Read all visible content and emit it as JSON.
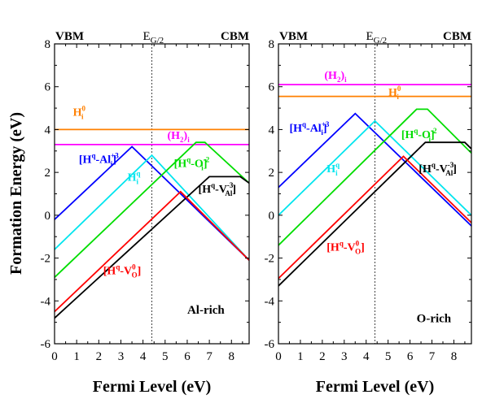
{
  "ylabel": "Formation Energy (eV)",
  "chart_data": [
    {
      "type": "line",
      "panel": "left",
      "condition_label": "Al-rich",
      "xlabel": "Fermi Level (eV)",
      "xlim": [
        0,
        8.8
      ],
      "ylim": [
        -6,
        8
      ],
      "xticks": [
        0,
        1,
        2,
        3,
        4,
        5,
        6,
        7,
        8
      ],
      "yticks": [
        -6,
        -4,
        -2,
        0,
        2,
        4,
        6,
        8
      ],
      "vbm_label": "VBM",
      "cbm_label": "CBM",
      "midgap_label": "E",
      "midgap_sub": "G/2",
      "midgap_x": 4.4,
      "series": [
        {
          "name": "H_i^0",
          "color": "#ff8000",
          "x": [
            0,
            8.8
          ],
          "y": [
            4.0,
            4.0
          ],
          "label": {
            "main": "H",
            "sub": "i",
            "sup": "0",
            "pre": "",
            "post": ""
          }
        },
        {
          "name": "(H2)i",
          "color": "#ff00ff",
          "x": [
            0,
            8.8
          ],
          "y": [
            3.3,
            3.3
          ],
          "label": {
            "main": "(H",
            "sub2": "2",
            "after": ")",
            "sub": "i",
            "sup": "",
            "pre": "",
            "post": ""
          }
        },
        {
          "name": "[Hq-Ali+3]",
          "color": "#0000ff",
          "x": [
            0,
            3.5,
            8.8
          ],
          "y": [
            -0.2,
            3.2,
            -2.1
          ],
          "label": {
            "main": "[H",
            "sup1": "q",
            "mid": "-Al",
            "sub": "i",
            "sup": "+3",
            "post": "]"
          }
        },
        {
          "name": "Hiq",
          "color": "#00e5ee",
          "x": [
            0,
            4.4,
            8.8
          ],
          "y": [
            -1.6,
            2.8,
            -2.1
          ],
          "label": {
            "main": "H",
            "sub": "i",
            "sup": "q",
            "pre": "",
            "post": ""
          }
        },
        {
          "name": "[Hq-Oi-2]",
          "color": "#00dd00",
          "x": [
            0,
            6.4,
            6.8,
            8.8
          ],
          "y": [
            -2.9,
            3.4,
            3.4,
            1.5
          ],
          "label": {
            "main": "[H",
            "sup1": "q",
            "mid": "-O",
            "sub": "i",
            "sup": "-2",
            "post": "]"
          }
        },
        {
          "name": "[Hq-VAl-3]",
          "color": "#000000",
          "x": [
            0,
            7.0,
            8.4,
            8.8
          ],
          "y": [
            -4.8,
            1.8,
            1.8,
            1.5
          ],
          "label": {
            "main": "[H",
            "sup1": "q",
            "mid": "-V",
            "sub": "Al",
            "sup": "-3",
            "post": "]"
          }
        },
        {
          "name": "[Hq-VO0]",
          "color": "#ff0000",
          "x": [
            0,
            5.7,
            8.8
          ],
          "y": [
            -4.5,
            1.1,
            -2.1
          ],
          "label": {
            "main": "[H",
            "sup1": "q",
            "mid": "-V",
            "sub": "O",
            "sup": "0",
            "post": "]"
          }
        }
      ]
    },
    {
      "type": "line",
      "panel": "right",
      "condition_label": "O-rich",
      "xlabel": "Fermi Level (eV)",
      "xlim": [
        0,
        8.8
      ],
      "ylim": [
        -6,
        8
      ],
      "xticks": [
        0,
        1,
        2,
        3,
        4,
        5,
        6,
        7,
        8
      ],
      "yticks": [
        -6,
        -4,
        -2,
        0,
        2,
        4,
        6,
        8
      ],
      "vbm_label": "VBM",
      "cbm_label": "CBM",
      "midgap_label": "E",
      "midgap_sub": "G/2",
      "midgap_x": 4.4,
      "series": [
        {
          "name": "(H2)i",
          "color": "#ff00ff",
          "x": [
            0,
            8.8
          ],
          "y": [
            6.1,
            6.1
          ],
          "label": {
            "main": "(H",
            "sub2": "2",
            "after": ")",
            "sub": "i",
            "sup": "",
            "pre": "",
            "post": ""
          }
        },
        {
          "name": "H_i^0",
          "color": "#ff8000",
          "x": [
            0,
            8.8
          ],
          "y": [
            5.55,
            5.55
          ],
          "label": {
            "main": "H",
            "sub": "i",
            "sup": "0",
            "pre": "",
            "post": ""
          }
        },
        {
          "name": "[Hq-Ali+3]",
          "color": "#0000ff",
          "x": [
            0,
            3.5,
            8.8
          ],
          "y": [
            1.3,
            4.75,
            -0.5
          ],
          "label": {
            "main": "[H",
            "sup1": "q",
            "mid": "-Al",
            "sub": "i",
            "sup": "+3",
            "post": "]"
          }
        },
        {
          "name": "Hiq",
          "color": "#00e5ee",
          "x": [
            0,
            4.4,
            8.8
          ],
          "y": [
            0.0,
            4.4,
            0.0
          ],
          "label": {
            "main": "H",
            "sub": "i",
            "sup": "q",
            "pre": "",
            "post": ""
          }
        },
        {
          "name": "[Hq-Oi-2]",
          "color": "#00dd00",
          "x": [
            0,
            6.3,
            6.8,
            8.8
          ],
          "y": [
            -1.4,
            4.95,
            4.95,
            2.9
          ],
          "label": {
            "main": "[H",
            "sup1": "q",
            "mid": "-O",
            "sub": "i",
            "sup": "-2",
            "post": "]"
          }
        },
        {
          "name": "[Hq-VAl-3]",
          "color": "#000000",
          "x": [
            0,
            6.7,
            8.5,
            8.8
          ],
          "y": [
            -3.3,
            3.4,
            3.4,
            3.1
          ],
          "label": {
            "main": "[H",
            "sup1": "q",
            "mid": "-V",
            "sub": "Al",
            "sup": "-3",
            "post": "]"
          }
        },
        {
          "name": "[Hq-VO0]",
          "color": "#ff0000",
          "x": [
            0,
            5.7,
            8.8
          ],
          "y": [
            -2.95,
            2.75,
            -0.35
          ],
          "label": {
            "main": "[H",
            "sup1": "q",
            "mid": "-V",
            "sub": "O",
            "sup": "0",
            "post": "]"
          }
        }
      ]
    }
  ]
}
